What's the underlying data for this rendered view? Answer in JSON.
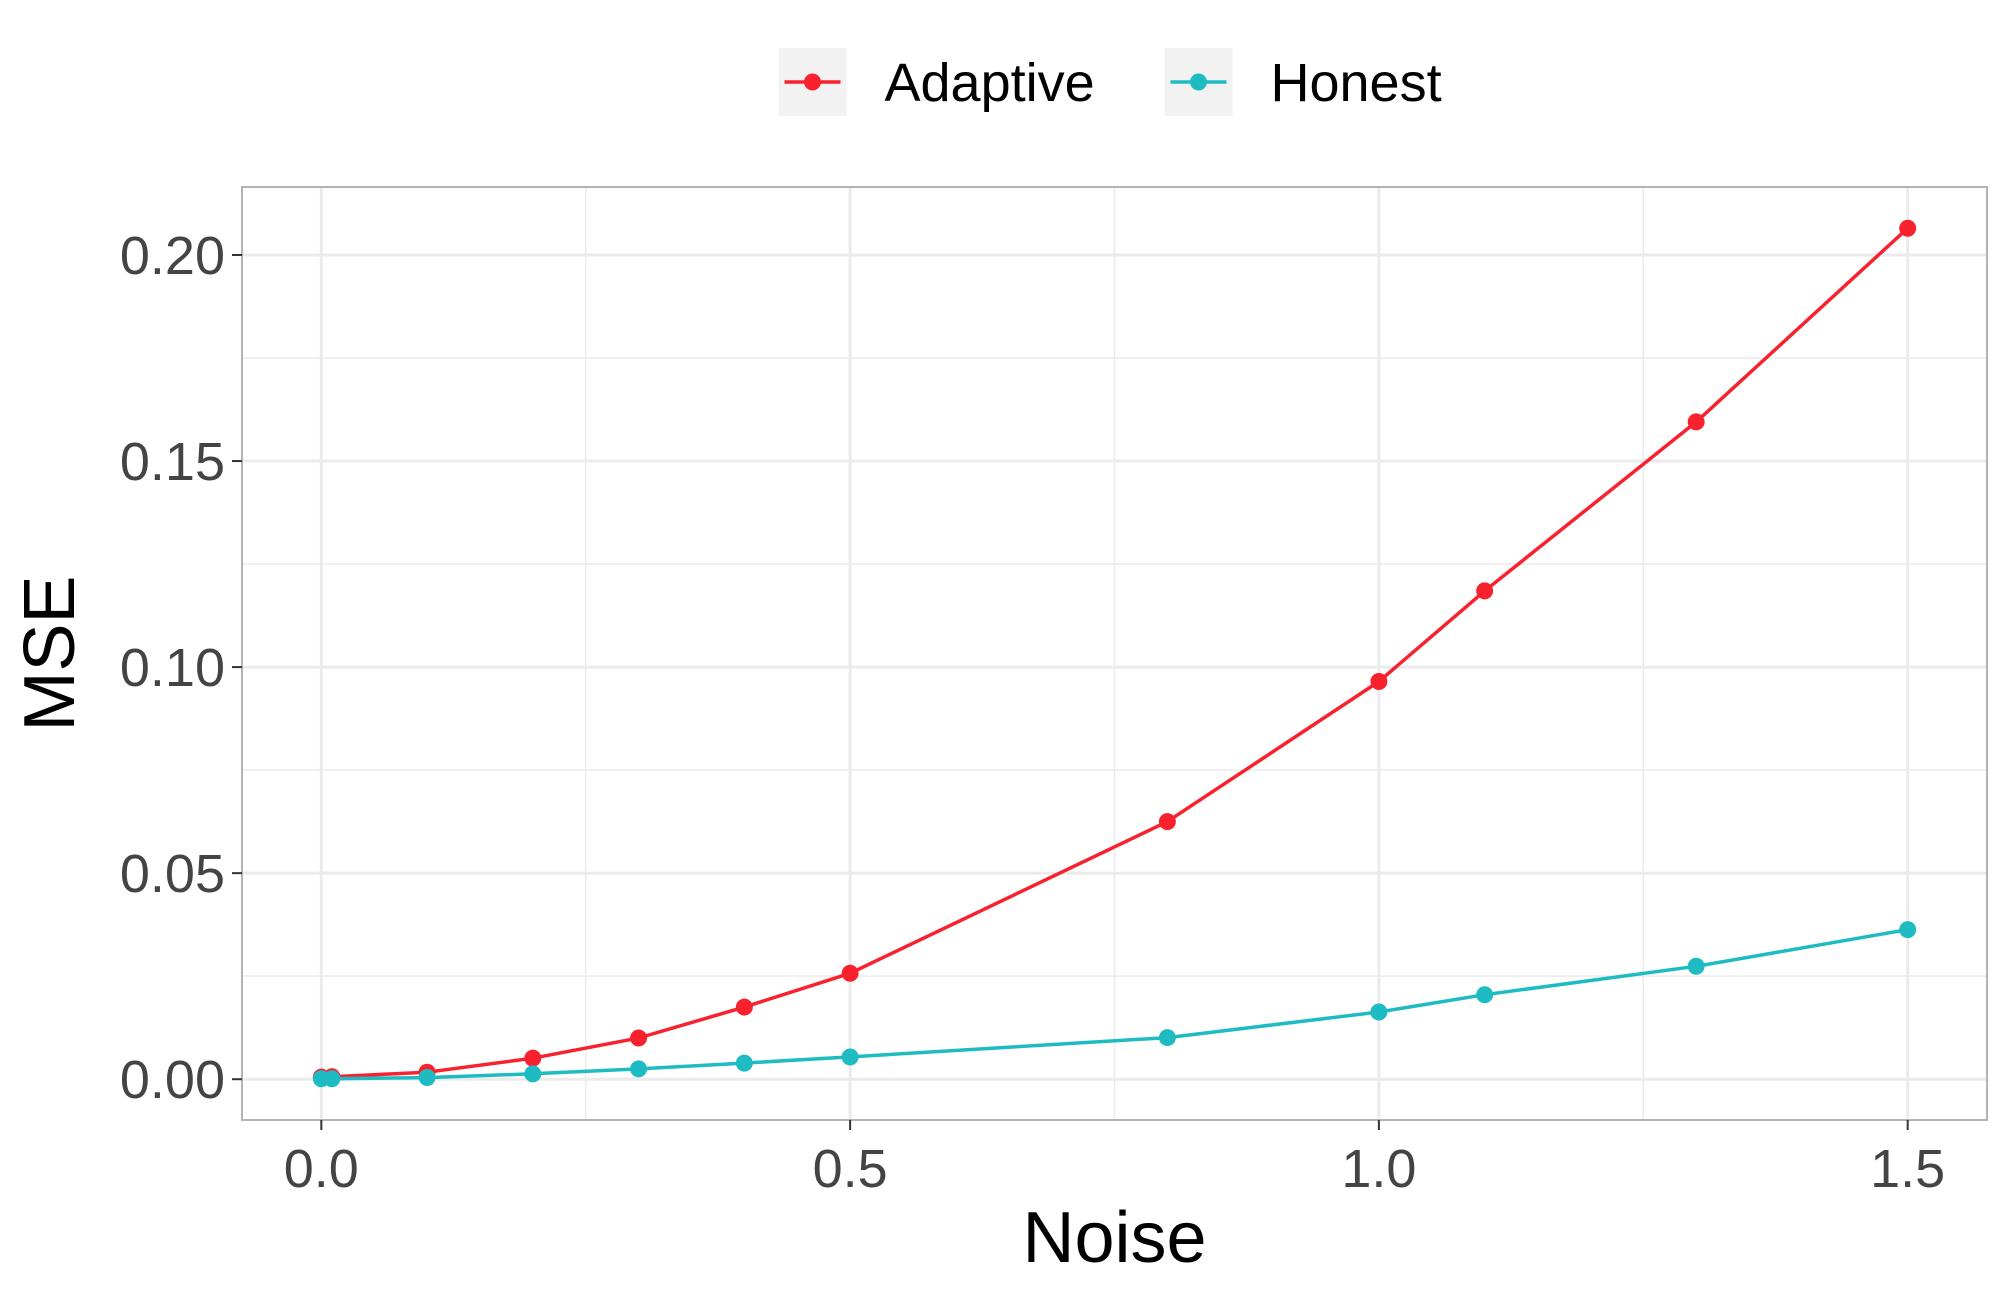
{
  "chart_data": {
    "type": "line",
    "title": "",
    "xlabel": "Noise",
    "ylabel": "MSE",
    "xlim": [
      -0.075,
      1.575
    ],
    "ylim": [
      -0.0099,
      0.2165
    ],
    "x_ticks": [
      0.0,
      0.5,
      1.0,
      1.5
    ],
    "x_tick_labels": [
      "0.0",
      "0.5",
      "1.0",
      "1.5"
    ],
    "y_ticks": [
      0.0,
      0.05,
      0.1,
      0.15,
      0.2
    ],
    "y_tick_labels": [
      "0.00",
      "0.05",
      "0.10",
      "0.15",
      "0.20"
    ],
    "grid": true,
    "legend_position": "top",
    "series": [
      {
        "name": "Adaptive",
        "color": "#f8222f",
        "x": [
          0.0,
          0.01,
          0.1,
          0.2,
          0.3,
          0.4,
          0.5,
          0.8,
          1.0,
          1.1,
          1.3,
          1.5
        ],
        "y": [
          0.0005,
          0.0006,
          0.0017,
          0.0051,
          0.01,
          0.0175,
          0.0257,
          0.0625,
          0.0965,
          0.1185,
          0.1595,
          0.2065
        ]
      },
      {
        "name": "Honest",
        "color": "#1ebcc2",
        "x": [
          0.0,
          0.01,
          0.1,
          0.2,
          0.3,
          0.4,
          0.5,
          0.8,
          1.0,
          1.1,
          1.3,
          1.5
        ],
        "y": [
          0.0001,
          0.0001,
          0.0004,
          0.0013,
          0.0025,
          0.0039,
          0.0054,
          0.0101,
          0.0163,
          0.0205,
          0.0274,
          0.0363
        ]
      }
    ]
  }
}
